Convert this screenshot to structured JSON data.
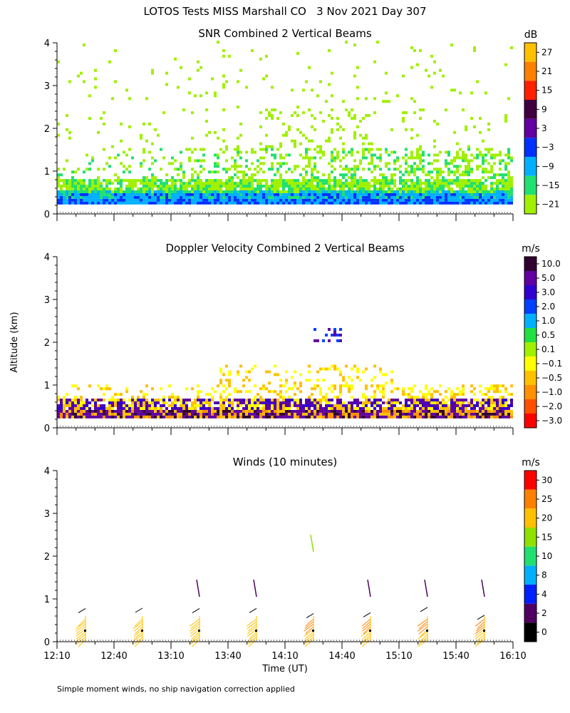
{
  "title": "LOTOS Tests MISS Marshall CO   3 Nov 2021 Day 307",
  "ylabel": "Altitude (km)",
  "xlabel": "Time (UT)",
  "footnote": "Simple moment winds, no ship navigation correction applied",
  "x_ticks": [
    "12:10",
    "12:40",
    "13:10",
    "13:40",
    "14:10",
    "14:40",
    "15:10",
    "15:40",
    "16:10"
  ],
  "y_ticks": [
    "0",
    "1",
    "2",
    "3",
    "4"
  ],
  "chart_data": [
    {
      "type": "heatmap",
      "title": "SNR Combined 2 Vertical Beams",
      "units": "dB",
      "ylim": [
        0,
        4
      ],
      "colorbar": {
        "labels": [
          "27",
          "21",
          "15",
          "9",
          "3",
          "−3",
          "−9",
          "−15",
          "−21"
        ],
        "colors": [
          "#ffc000",
          "#ff8000",
          "#ff2000",
          "#400040",
          "#6000a0",
          "#0030ff",
          "#00b0ff",
          "#20e070",
          "#a0f000"
        ]
      }
    },
    {
      "type": "heatmap",
      "title": "Doppler Velocity Combined 2 Vertical Beams",
      "units": "m/s",
      "ylim": [
        0,
        4
      ],
      "colorbar": {
        "labels": [
          "10.0",
          "5.0",
          "3.0",
          "2.0",
          "1.0",
          "0.5",
          "0.1",
          "−0.1",
          "−0.5",
          "−1.0",
          "−2.0",
          "−3.0"
        ],
        "colors": [
          "#300030",
          "#6000a0",
          "#3000d0",
          "#0040ff",
          "#00b0ff",
          "#20e040",
          "#a0f000",
          "#ffff00",
          "#ffc000",
          "#ff9000",
          "#ff5000",
          "#ff0000"
        ]
      }
    },
    {
      "type": "wind_barbs",
      "title": "Winds (10 minutes)",
      "units": "m/s",
      "ylim": [
        0,
        4
      ],
      "colorbar": {
        "labels": [
          "30",
          "25",
          "20",
          "15",
          "10",
          "8",
          "4",
          "2",
          "0"
        ],
        "colors": [
          "#ff0000",
          "#ff8000",
          "#ffc000",
          "#90e000",
          "#20e070",
          "#00b0ff",
          "#0020ff",
          "#500060",
          "#000000"
        ]
      },
      "profile_times": [
        "12:25",
        "12:55",
        "13:25",
        "13:55",
        "14:25",
        "14:55",
        "15:25",
        "15:55"
      ]
    }
  ]
}
